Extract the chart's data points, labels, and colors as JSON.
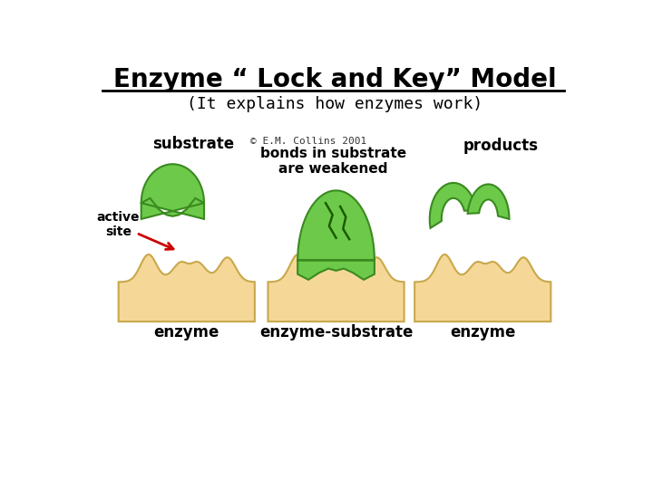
{
  "title": "Enzyme “ Lock and Key” Model",
  "subtitle": "(It explains how enzymes work)",
  "copyright": "© E.M. Collins 2001",
  "bonds_text": "bonds in substrate\nare weakened",
  "active_site_label": "active\nsite",
  "bg_color": "#ffffff",
  "enzyme_fill": "#F5D898",
  "enzyme_edge": "#C8A84B",
  "substrate_fill": "#6DC94A",
  "substrate_edge": "#3A8A20",
  "arrow_color": "#CC0000"
}
